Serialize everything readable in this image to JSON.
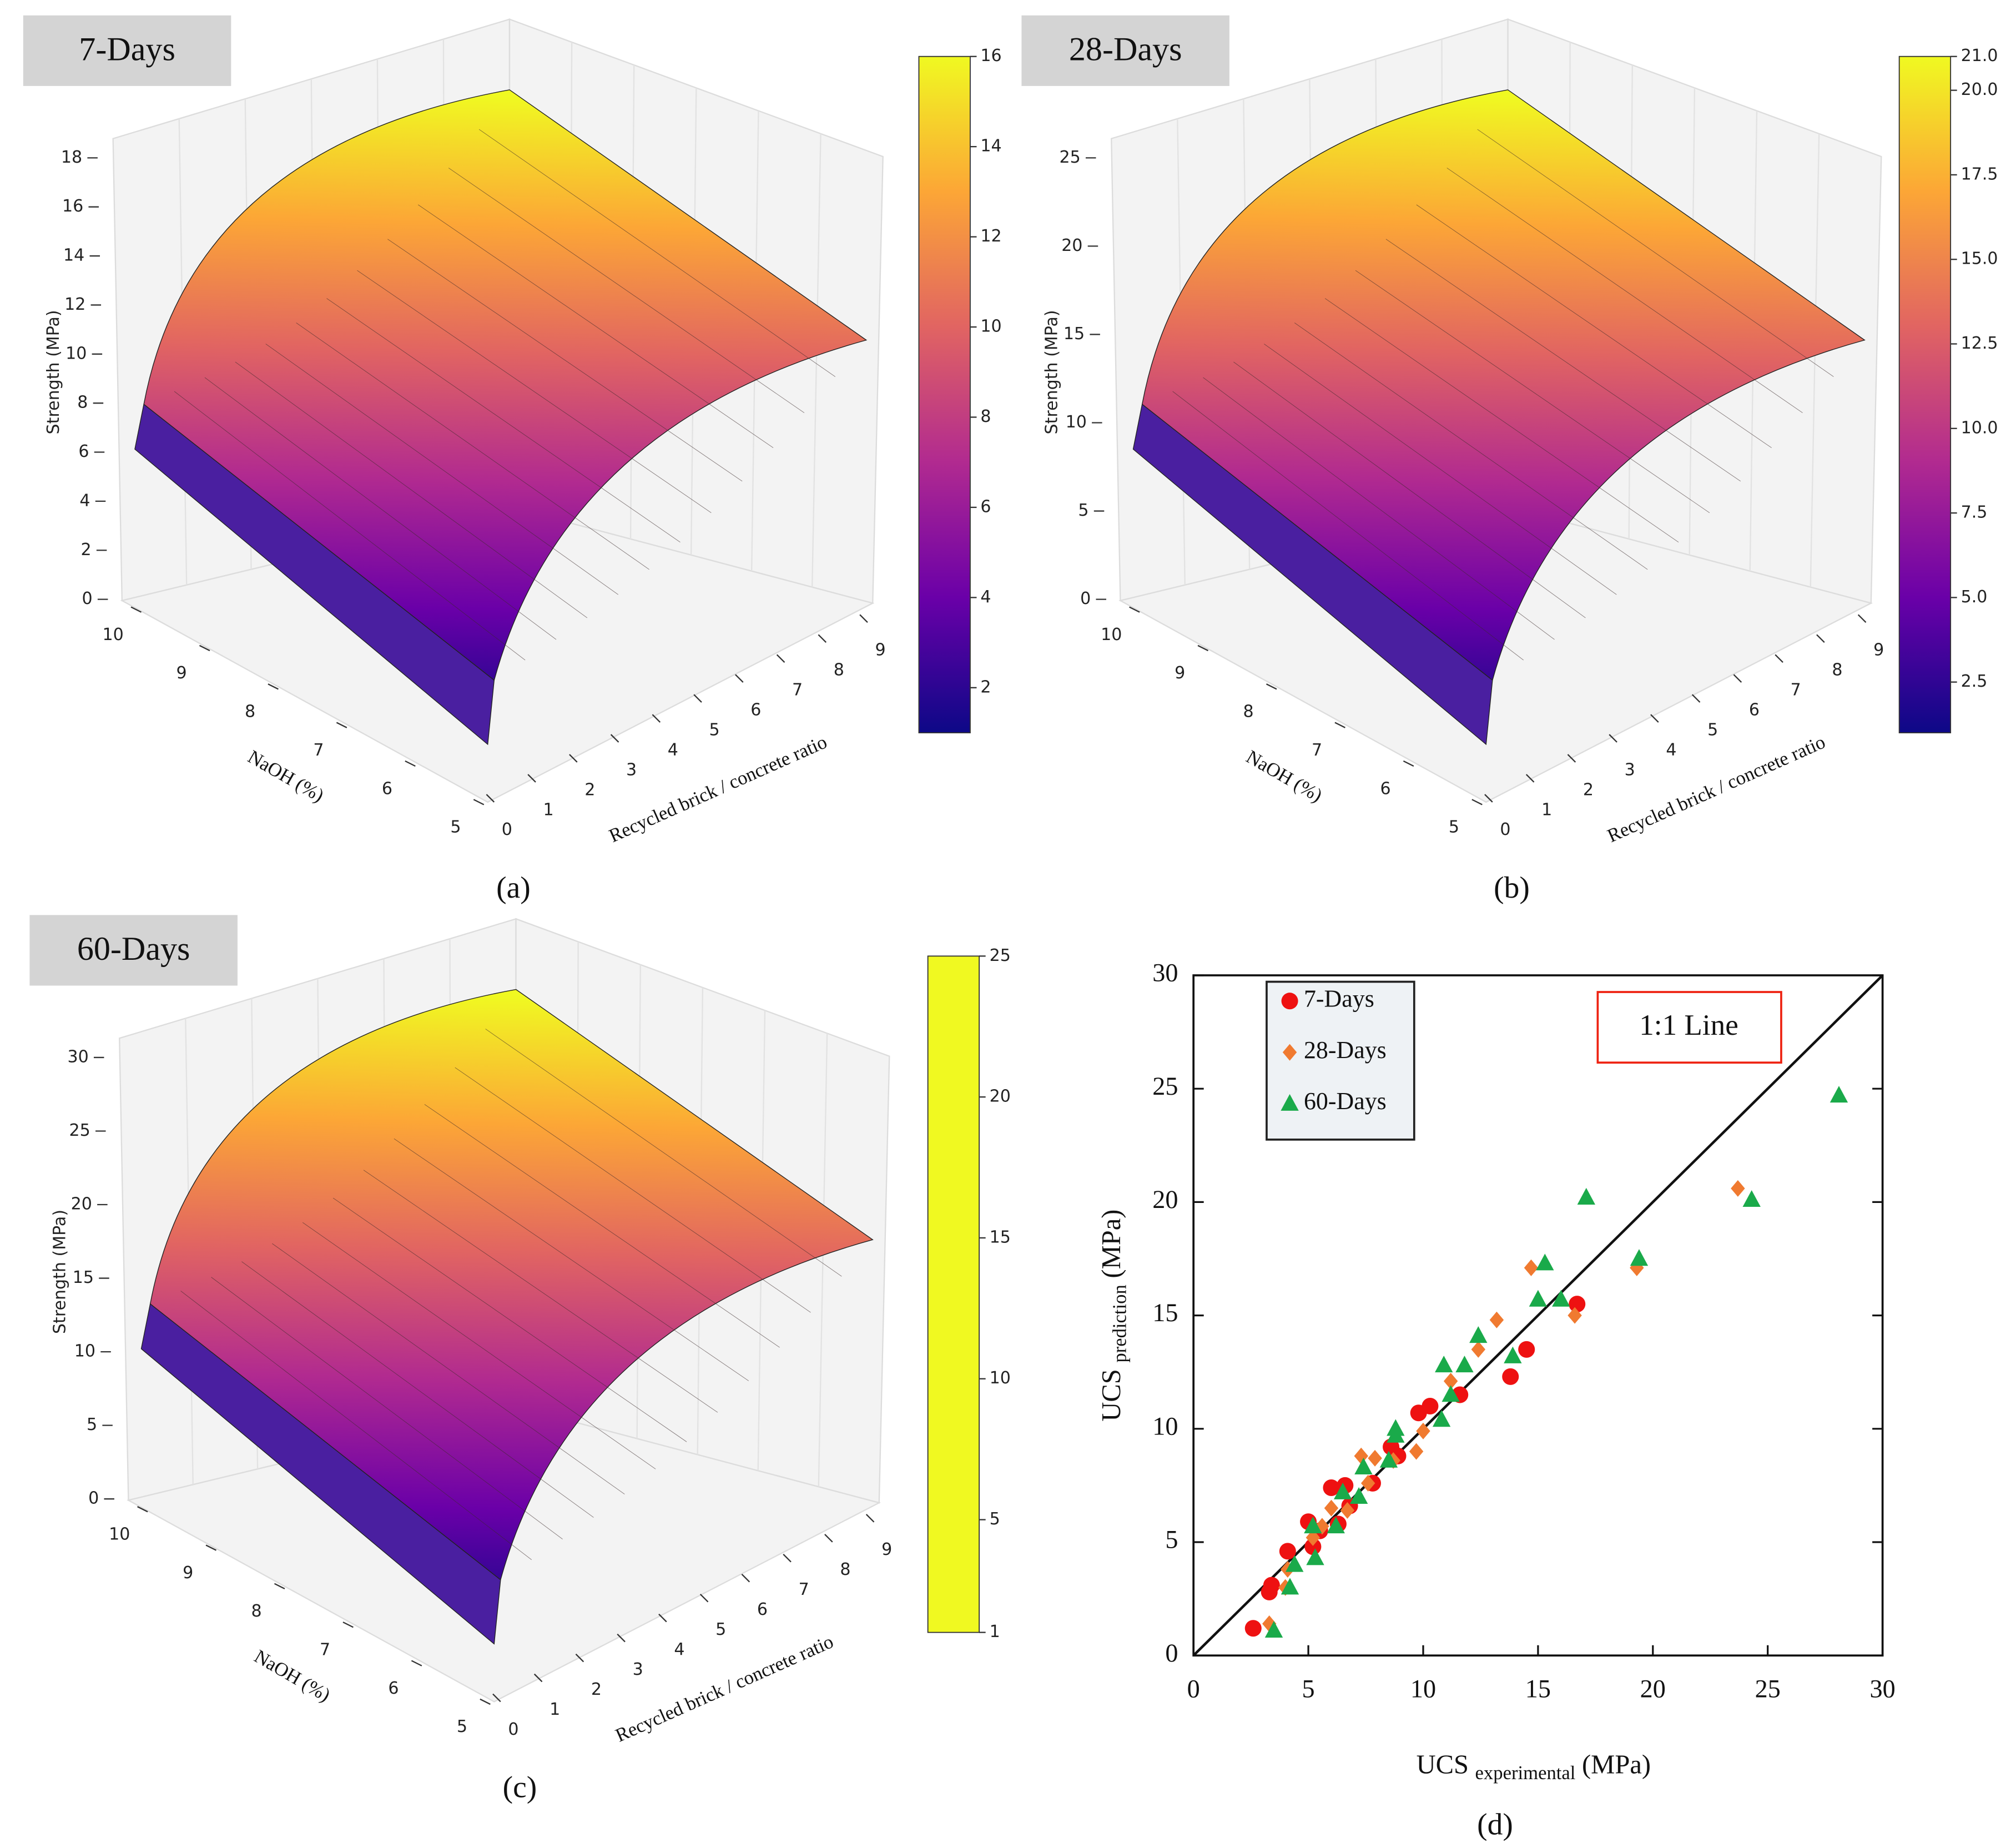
{
  "chart_data": [
    {
      "type": "surface3d",
      "title": "7-Days",
      "caption": "(a)",
      "colormap": "plasma",
      "xlabel": "Recycled brick / concrete ratio",
      "ylabel": "NaOH (%)",
      "zlabel": "Strength (MPa)",
      "xlim": [
        0,
        9
      ],
      "xticks": [
        0,
        1,
        2,
        3,
        4,
        5,
        6,
        7,
        8,
        9
      ],
      "ylim": [
        5,
        10
      ],
      "yticks": [
        5,
        6,
        7,
        8,
        9,
        10
      ],
      "zlim": [
        0,
        18
      ],
      "zticks": [
        0,
        2,
        4,
        6,
        8,
        10,
        12,
        14,
        16,
        18
      ],
      "clim": [
        1,
        16
      ],
      "cticks": [
        2,
        4,
        6,
        8,
        10,
        12,
        14,
        16
      ]
    },
    {
      "type": "surface3d",
      "title": "28-Days",
      "caption": "(b)",
      "colormap": "plasma",
      "xlabel": "Recycled brick / concrete ratio",
      "ylabel": "NaOH (%)",
      "zlabel": "Strength (MPa)",
      "xlim": [
        0,
        9
      ],
      "xticks": [
        0,
        1,
        2,
        3,
        4,
        5,
        6,
        7,
        8,
        9
      ],
      "ylim": [
        5,
        10
      ],
      "yticks": [
        5,
        6,
        7,
        8,
        9,
        10
      ],
      "zlim": [
        0,
        25
      ],
      "zticks": [
        0,
        5,
        10,
        15,
        20,
        25
      ],
      "clim": [
        1,
        21
      ],
      "cticks": [
        2.5,
        {
          "value": 5,
          "label": "5.0"
        },
        7.5,
        {
          "value": 10,
          "label": "10.0"
        },
        12.5,
        {
          "value": 15,
          "label": "15.0"
        },
        17.5,
        {
          "value": 20,
          "label": "20.0"
        },
        {
          "value": 21,
          "label": "21.0"
        }
      ]
    },
    {
      "type": "surface3d",
      "title": "60-Days",
      "caption": "(c)",
      "colormap": "plasma",
      "xlabel": "Recycled brick / concrete ratio",
      "ylabel": "NaOH (%)",
      "zlabel": "Strength (MPa)",
      "xlim": [
        0,
        9
      ],
      "xticks": [
        0,
        1,
        2,
        3,
        4,
        5,
        6,
        7,
        8,
        9
      ],
      "ylim": [
        5,
        10
      ],
      "yticks": [
        5,
        6,
        7,
        8,
        9,
        10
      ],
      "zlim": [
        0,
        30
      ],
      "zticks": [
        0,
        5,
        10,
        15,
        20,
        25,
        30
      ],
      "clim": [
        1,
        25
      ],
      "cticks": [
        1,
        5,
        10,
        15,
        20,
        25
      ]
    },
    {
      "type": "scatter",
      "caption": "(d)",
      "annotation": "1:1 Line",
      "xlabel": {
        "main": "UCS",
        "sub": "experimental",
        "unit": "(MPa)"
      },
      "ylabel": {
        "main": "UCS",
        "sub": "prediction",
        "unit": "(MPa)"
      },
      "xlim": [
        0,
        30
      ],
      "xticks": [
        0,
        5,
        10,
        15,
        20,
        25,
        30
      ],
      "ylim": [
        0,
        30
      ],
      "yticks": [
        0,
        5,
        10,
        15,
        20,
        25,
        30
      ],
      "series": [
        {
          "name": "7-Days",
          "color": "#ee1111",
          "marker": "circle",
          "x": [
            2.6,
            3.3,
            3.4,
            4.1,
            5.0,
            5.2,
            5.5,
            6.0,
            6.3,
            6.6,
            6.8,
            7.8,
            8.6,
            8.9,
            9.8,
            10.3,
            11.6,
            13.8,
            14.5,
            16.7
          ],
          "values": [
            1.2,
            2.8,
            3.1,
            4.6,
            5.9,
            4.8,
            5.5,
            7.4,
            5.8,
            7.5,
            6.6,
            7.6,
            9.2,
            8.8,
            10.7,
            11.0,
            11.5,
            12.3,
            13.5,
            15.5
          ]
        },
        {
          "name": "28-Days",
          "color": "#f07a30",
          "marker": "diamond",
          "x": [
            3.3,
            4.0,
            4.1,
            5.2,
            5.6,
            6.0,
            6.7,
            7.3,
            7.6,
            7.9,
            8.7,
            9.7,
            10.0,
            11.2,
            12.4,
            13.2,
            14.7,
            16.6,
            19.3,
            23.7
          ],
          "values": [
            1.4,
            3.0,
            3.8,
            5.2,
            5.7,
            6.5,
            6.4,
            8.8,
            7.6,
            8.7,
            8.6,
            9.0,
            9.9,
            12.1,
            13.5,
            14.8,
            17.1,
            15.0,
            17.1,
            20.6
          ]
        },
        {
          "name": "60-Days",
          "color": "#1aaa4a",
          "marker": "triangle",
          "x": [
            3.5,
            4.2,
            4.4,
            5.2,
            5.3,
            6.2,
            6.5,
            7.2,
            7.4,
            8.5,
            8.8,
            8.8,
            10.8,
            10.9,
            11.2,
            11.8,
            12.4,
            13.9,
            15.0,
            15.3,
            16.0,
            17.1,
            19.4,
            24.3,
            28.1
          ],
          "values": [
            1.1,
            3.0,
            4.0,
            5.7,
            4.3,
            5.7,
            7.2,
            7.0,
            8.3,
            8.6,
            10.0,
            9.7,
            10.4,
            12.8,
            11.5,
            12.8,
            14.1,
            13.2,
            15.7,
            17.3,
            15.7,
            20.2,
            17.5,
            20.1,
            24.7
          ]
        }
      ]
    }
  ]
}
